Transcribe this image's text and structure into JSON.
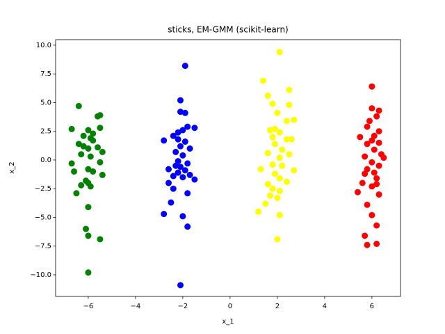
{
  "chart_data": {
    "type": "scatter",
    "title": "sticks, EM-GMM (scikit-learn)",
    "x_label": "x_1",
    "y_label": "x_2",
    "xlim": [
      -7.38,
      7.21
    ],
    "ylim": [
      -11.88,
      10.48
    ],
    "xticks": [
      {
        "value": -6,
        "label": "−6"
      },
      {
        "value": -4,
        "label": "−4"
      },
      {
        "value": -2,
        "label": "−2"
      },
      0,
      2,
      4,
      6
    ],
    "yticks": [
      {
        "value": -10,
        "label": "−10.0"
      },
      {
        "value": -7.5,
        "label": "−7.5"
      },
      {
        "value": -5,
        "label": "−5.0"
      },
      {
        "value": -2.5,
        "label": "−2.5"
      },
      {
        "value": 0,
        "label": "0.0"
      },
      {
        "value": 2.5,
        "label": "2.5"
      },
      {
        "value": 5,
        "label": "5.0"
      },
      {
        "value": 7.5,
        "label": "7.5"
      },
      {
        "value": 10,
        "label": "10.0"
      }
    ],
    "grid": false,
    "series": [
      {
        "color": "#008000",
        "x": [
          -6.4,
          -5.5,
          -5.6,
          -5.5,
          -6.7,
          -6.0,
          -5.8,
          -6.2,
          -5.9,
          -5.8,
          -6.4,
          -6.2,
          -5.6,
          -6.0,
          -5.4,
          -6.3,
          -5.9,
          -6.7,
          -5.5,
          -6.0,
          -5.8,
          -6.6,
          -5.4,
          -6.1,
          -6.3,
          -5.9,
          -6.0,
          -6.5,
          -6.0,
          -6.1,
          -6.0,
          -5.5,
          -6.0
        ],
        "y": [
          4.7,
          3.9,
          3.8,
          2.8,
          2.7,
          2.6,
          2.3,
          2.1,
          1.9,
          1.7,
          1.4,
          1.2,
          1.1,
          1.0,
          0.7,
          0.5,
          0.3,
          -0.3,
          -0.2,
          -0.8,
          -1.0,
          -1.0,
          -1.3,
          -1.8,
          -2.2,
          -2.3,
          -2.0,
          -2.9,
          -4.1,
          -6.0,
          -6.6,
          -6.9,
          -9.8
        ]
      },
      {
        "color": "#0000ff",
        "x": [
          -1.9,
          -2.1,
          -2.1,
          -1.9,
          -1.8,
          -1.5,
          -2.0,
          -2.2,
          -2.4,
          -2.8,
          -2.2,
          -1.9,
          -2.1,
          -1.7,
          -2.3,
          -2.0,
          -2.2,
          -1.8,
          -2.1,
          -2.6,
          -2.3,
          -1.9,
          -2.2,
          -1.7,
          -2.0,
          -1.5,
          -2.4,
          -2.6,
          -2.4,
          -1.8,
          -2.5,
          -2.8,
          -2.0,
          -1.8,
          -2.1
        ],
        "y": [
          8.2,
          5.2,
          4.2,
          4.1,
          2.9,
          2.8,
          2.6,
          2.4,
          2.1,
          1.7,
          1.8,
          1.6,
          1.2,
          1.0,
          0.7,
          0.4,
          -0.1,
          -0.3,
          -0.6,
          -0.8,
          -0.5,
          -0.9,
          -1.1,
          -1.3,
          -1.5,
          -1.7,
          -1.4,
          -2.0,
          -2.5,
          -2.9,
          -3.7,
          -4.7,
          -4.9,
          -5.8,
          -10.9
        ]
      },
      {
        "color": "#ffff00",
        "x": [
          2.1,
          1.4,
          1.6,
          2.5,
          1.8,
          2.5,
          2.0,
          2.4,
          2.7,
          1.7,
          1.9,
          2.1,
          1.8,
          2.4,
          2.6,
          1.9,
          2.2,
          1.6,
          2.5,
          2.1,
          1.8,
          1.3,
          2.2,
          2.7,
          1.9,
          2.1,
          2.4,
          1.6,
          1.8,
          2.1,
          1.7,
          2.0,
          1.5,
          1.2,
          2.1,
          2.0
        ],
        "y": [
          9.4,
          6.9,
          5.6,
          6.1,
          4.9,
          4.8,
          4.1,
          3.4,
          3.5,
          2.6,
          2.7,
          2.4,
          2.0,
          1.8,
          1.8,
          1.4,
          0.9,
          0.6,
          0.5,
          0.2,
          -0.4,
          -0.8,
          -0.5,
          -0.9,
          -1.2,
          -1.6,
          -1.9,
          -2.1,
          -2.5,
          -2.7,
          -3.1,
          -3.3,
          -3.8,
          -4.5,
          -4.8,
          -6.9
        ]
      },
      {
        "color": "#ff0000",
        "x": [
          6.0,
          6.0,
          6.3,
          6.2,
          5.9,
          5.8,
          6.3,
          6.1,
          5.5,
          6.0,
          6.3,
          5.8,
          6.1,
          6.4,
          6.5,
          5.7,
          6.0,
          6.3,
          5.8,
          6.1,
          5.7,
          6.2,
          5.6,
          6.0,
          6.2,
          5.4,
          6.3,
          5.8,
          6.0,
          6.2,
          5.7,
          6.2,
          5.8
        ],
        "y": [
          6.4,
          4.5,
          4.3,
          3.8,
          3.4,
          2.9,
          2.5,
          2.1,
          2.0,
          1.7,
          1.5,
          1.4,
          0.9,
          0.5,
          0.2,
          0.3,
          -0.2,
          -0.5,
          -0.8,
          -1.1,
          -1.2,
          -1.6,
          -2.0,
          -2.3,
          -2.1,
          -2.8,
          -3.0,
          -3.9,
          -4.8,
          -5.7,
          -6.6,
          -7.3,
          -7.4
        ]
      }
    ]
  }
}
